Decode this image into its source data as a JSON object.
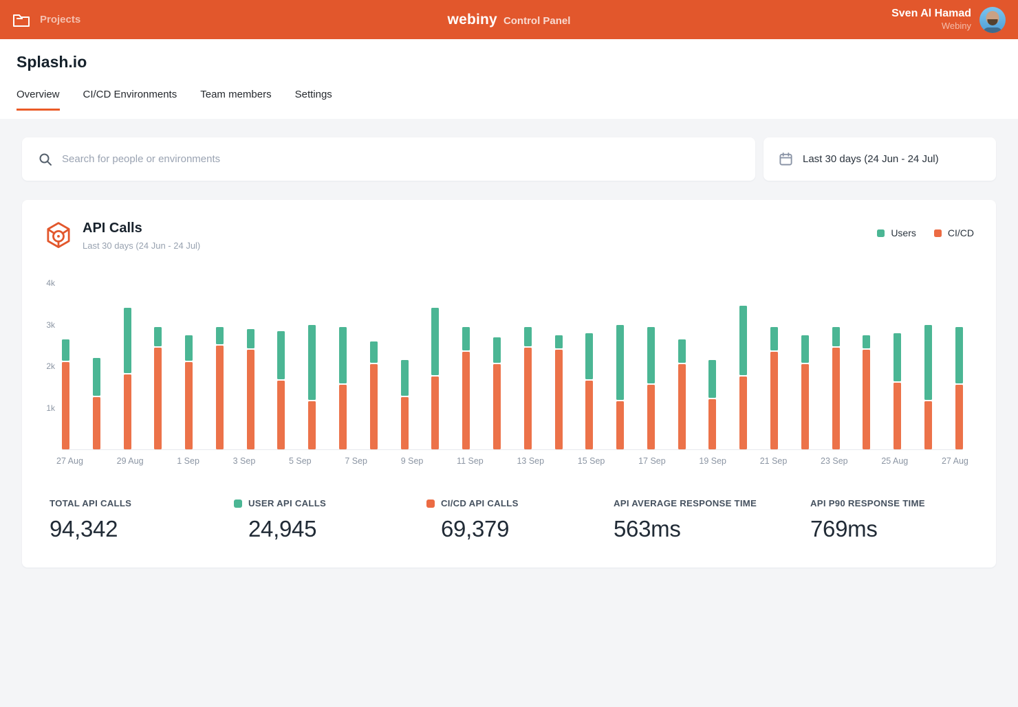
{
  "header": {
    "nav_projects": "Projects",
    "brand": "webiny",
    "brand_suffix": "Control Panel",
    "user_name": "Sven Al Hamad",
    "user_org": "Webiny"
  },
  "page": {
    "title": "Splash.io",
    "tabs": [
      {
        "label": "Overview",
        "active": true
      },
      {
        "label": "CI/CD Environments",
        "active": false
      },
      {
        "label": "Team members",
        "active": false
      },
      {
        "label": "Settings",
        "active": false
      }
    ]
  },
  "toolbar": {
    "search_placeholder": "Search for people or environments",
    "date_range": "Last 30 days (24 Jun - 24 Jul)"
  },
  "card": {
    "title": "API Calls",
    "subtitle": "Last 30 days (24 Jun - 24 Jul)",
    "legend": [
      {
        "label": "Users",
        "color": "#4BB694"
      },
      {
        "label": "CI/CD",
        "color": "#EC6B43"
      }
    ]
  },
  "chart_data": {
    "type": "bar",
    "stacked": true,
    "title": "API Calls",
    "ylim": [
      0,
      4000
    ],
    "y_ticks": [
      1000,
      2000,
      3000,
      4000
    ],
    "y_tick_labels": [
      "1k",
      "2k",
      "3k",
      "4k"
    ],
    "x_tick_labels": [
      "27 Aug",
      "29 Aug",
      "1 Sep",
      "3 Sep",
      "5 Sep",
      "7 Sep",
      "9 Sep",
      "11 Sep",
      "13 Sep",
      "15 Sep",
      "17 Sep",
      "19 Sep",
      "21 Sep",
      "23 Sep",
      "25 Aug",
      "27 Aug"
    ],
    "series": [
      {
        "name": "CI/CD",
        "color": "#EC7249",
        "values": [
          2100,
          1250,
          1800,
          2450,
          2100,
          2500,
          2400,
          1650,
          1150,
          1550,
          2050,
          1250,
          1750,
          2350,
          2050,
          2450,
          2400,
          1650,
          1150,
          1550,
          2050,
          1200,
          1750,
          2350,
          2050,
          2450,
          2400,
          1600,
          1150,
          1550
        ]
      },
      {
        "name": "Users",
        "color": "#4BB694",
        "values": [
          550,
          950,
          1600,
          500,
          650,
          450,
          500,
          1200,
          1850,
          1400,
          550,
          900,
          1650,
          600,
          650,
          500,
          350,
          1150,
          1850,
          1400,
          600,
          950,
          1700,
          600,
          700,
          500,
          350,
          1200,
          1850,
          1400
        ]
      }
    ],
    "legend_position": "top-right",
    "grid": false
  },
  "stats": [
    {
      "label": "TOTAL API CALLS",
      "value": "94,342",
      "dot": null
    },
    {
      "label": "USER API CALLS",
      "value": "24,945",
      "dot": "#4BB694"
    },
    {
      "label": "CI/CD API CALLS",
      "value": "69,379",
      "dot": "#EC6B43"
    },
    {
      "label": "API AVERAGE RESPONSE TIME",
      "value": "563ms",
      "dot": null
    },
    {
      "label": "API P90 RESPONSE TIME",
      "value": "769ms",
      "dot": null
    }
  ],
  "colors": {
    "topbar": "#E2572C",
    "tab_active_underline": "#EA5B27",
    "page_background": "#F4F5F7",
    "axis_text": "#8B95A3"
  }
}
